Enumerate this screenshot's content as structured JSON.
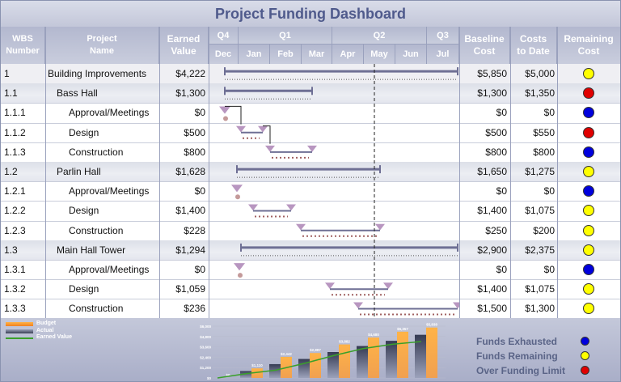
{
  "title": "Project Funding Dashboard",
  "headers": {
    "wbs": [
      "WBS",
      "Number"
    ],
    "name": [
      "Project",
      "Name"
    ],
    "earned": [
      "Earned",
      "Value"
    ],
    "baseline": [
      "Baseline",
      "Cost"
    ],
    "costs": [
      "Costs",
      "to Date"
    ],
    "remaining": [
      "Remaining",
      "Cost"
    ]
  },
  "quarters": [
    "Q4",
    "Q1",
    "Q2",
    "Q3"
  ],
  "months": [
    "Dec",
    "Jan",
    "Feb",
    "Mar",
    "Apr",
    "May",
    "Jun",
    "Jul"
  ],
  "rows": [
    {
      "wbs": "1",
      "name": "Building Improvements",
      "indent": 0,
      "earned": "$4,222",
      "baseline": "$5,850",
      "costs": "$5,000",
      "status": "yellow",
      "shade": "first"
    },
    {
      "wbs": "1.1",
      "name": "Bass Hall",
      "indent": 1,
      "earned": "$1,300",
      "baseline": "$1,300",
      "costs": "$1,350",
      "status": "red",
      "shade": "shaded"
    },
    {
      "wbs": "1.1.1",
      "name": "Approval/Meetings",
      "indent": 2,
      "earned": "$0",
      "baseline": "$0",
      "costs": "$0",
      "status": "blue",
      "shade": ""
    },
    {
      "wbs": "1.1.2",
      "name": "Design",
      "indent": 2,
      "earned": "$500",
      "baseline": "$500",
      "costs": "$550",
      "status": "red",
      "shade": ""
    },
    {
      "wbs": "1.1.3",
      "name": "Construction",
      "indent": 2,
      "earned": "$800",
      "baseline": "$800",
      "costs": "$800",
      "status": "blue",
      "shade": ""
    },
    {
      "wbs": "1.2",
      "name": "Parlin Hall",
      "indent": 1,
      "earned": "$1,628",
      "baseline": "$1,650",
      "costs": "$1,275",
      "status": "yellow",
      "shade": "shaded"
    },
    {
      "wbs": "1.2.1",
      "name": "Approval/Meetings",
      "indent": 2,
      "earned": "$0",
      "baseline": "$0",
      "costs": "$0",
      "status": "blue",
      "shade": ""
    },
    {
      "wbs": "1.2.2",
      "name": "Design",
      "indent": 2,
      "earned": "$1,400",
      "baseline": "$1,400",
      "costs": "$1,075",
      "status": "yellow",
      "shade": ""
    },
    {
      "wbs": "1.2.3",
      "name": "Construction",
      "indent": 2,
      "earned": "$228",
      "baseline": "$250",
      "costs": "$200",
      "status": "yellow",
      "shade": ""
    },
    {
      "wbs": "1.3",
      "name": "Main Hall Tower",
      "indent": 1,
      "earned": "$1,294",
      "baseline": "$2,900",
      "costs": "$2,375",
      "status": "yellow",
      "shade": "shaded"
    },
    {
      "wbs": "1.3.1",
      "name": "Approval/Meetings",
      "indent": 2,
      "earned": "$0",
      "baseline": "$0",
      "costs": "$0",
      "status": "blue",
      "shade": ""
    },
    {
      "wbs": "1.3.2",
      "name": "Design",
      "indent": 2,
      "earned": "$1,059",
      "baseline": "$1,400",
      "costs": "$1,075",
      "status": "yellow",
      "shade": ""
    },
    {
      "wbs": "1.3.3",
      "name": "Construction",
      "indent": 2,
      "earned": "$236",
      "baseline": "$1,500",
      "costs": "$1,300",
      "status": "yellow",
      "shade": ""
    }
  ],
  "status_colors": {
    "yellow": "#ffff00",
    "red": "#e00000",
    "blue": "#0000dd"
  },
  "legend": {
    "budget": "Budget",
    "actual": "Actual",
    "earned": "Earned Value"
  },
  "funding_legend": [
    {
      "label": "Funds Exhausted",
      "status": "blue"
    },
    {
      "label": "Funds Remaining",
      "status": "yellow"
    },
    {
      "label": "Over Funding Limit",
      "status": "red"
    }
  ],
  "chart_data": {
    "type": "bar",
    "ylim": [
      0,
      6000
    ],
    "y_ticks": [
      "$0",
      "$1,200",
      "$2,400",
      "$3,600",
      "$4,800",
      "$6,000"
    ],
    "y_tick_values": [
      0,
      1200,
      2400,
      3600,
      4800,
      6000
    ],
    "series": [
      {
        "name": "Budget",
        "values": [
          0,
          1110,
          2442,
          2887,
          3882,
          4680,
          5357,
          5838
        ]
      },
      {
        "name": "Actual",
        "values": [
          0,
          800,
          1600,
          2200,
          3000,
          3700,
          4300,
          5000
        ]
      },
      {
        "name": "Earned Value",
        "values": [
          0,
          500,
          900,
          1700,
          2600,
          3400,
          3900,
          4222
        ]
      }
    ],
    "data_labels": [
      "$0",
      "$1,110",
      "$2,442",
      "$2,887",
      "$3,882",
      "$4,680",
      "$5,357",
      "$5,838"
    ]
  }
}
